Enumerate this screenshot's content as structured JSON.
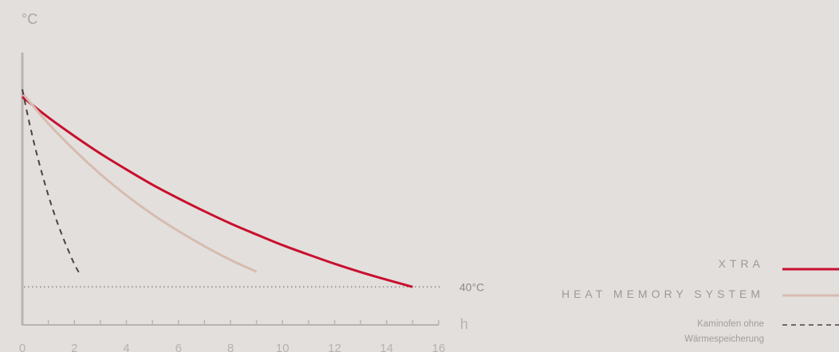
{
  "colors": {
    "background": "#e3dfdd",
    "xtra": "#c8102e",
    "heat_memory": "#d6bcb0",
    "kaminofen": "#4a4443",
    "axis": "#b9b5b2",
    "tick_label": "#b6b2af",
    "threshold": "#8a8684"
  },
  "chart_data": {
    "type": "line",
    "ylabel": "°C",
    "xlabel": "h",
    "x_ticks": [
      0,
      2,
      4,
      6,
      8,
      10,
      12,
      14,
      16
    ],
    "xlim": [
      0,
      16
    ],
    "ylim": [
      30,
      100
    ],
    "threshold": {
      "value": 40,
      "label": "40°C",
      "style": "dotted"
    },
    "grid": false,
    "legend_position": "bottom-right",
    "series": [
      {
        "name": "XTRA",
        "style": "solid",
        "color": "#c8102e",
        "x": [
          0,
          1,
          2,
          3,
          4,
          5,
          6,
          7,
          8,
          9,
          10,
          11,
          12,
          13,
          14,
          15
        ],
        "y": [
          90,
          84.6,
          79.7,
          75.1,
          70.9,
          66.9,
          63.3,
          59.9,
          56.7,
          53.8,
          51.0,
          48.5,
          46.1,
          43.9,
          41.9,
          40.0
        ]
      },
      {
        "name": "HEAT MEMORY SYSTEM",
        "style": "solid",
        "color": "#d6bcb0",
        "x": [
          0,
          1,
          2,
          3,
          4,
          5,
          6,
          7,
          8,
          9
        ],
        "y": [
          91,
          83.0,
          76.0,
          69.7,
          64.1,
          59.1,
          54.7,
          50.7,
          47.1,
          44.0
        ]
      },
      {
        "name": "Kaminofen ohne Wärmespeicherung",
        "style": "dashed",
        "color": "#4a4443",
        "x": [
          0,
          0.25,
          0.5,
          0.75,
          1.0,
          1.25,
          1.5,
          1.75,
          2.0,
          2.2
        ],
        "y": [
          92,
          83.8,
          76.5,
          70.0,
          64.1,
          58.8,
          54.1,
          49.9,
          46.0,
          43.5
        ]
      }
    ]
  },
  "legend": {
    "items": [
      {
        "label": "XTRA",
        "style": "solid",
        "color": "#c8102e"
      },
      {
        "label": "HEAT MEMORY SYSTEM",
        "style": "solid",
        "color": "#d6bcb0"
      },
      {
        "label_line1": "Kaminofen ohne",
        "label_line2": "Wärmespeicherung",
        "style": "dashed",
        "color": "#4a4443"
      }
    ]
  }
}
